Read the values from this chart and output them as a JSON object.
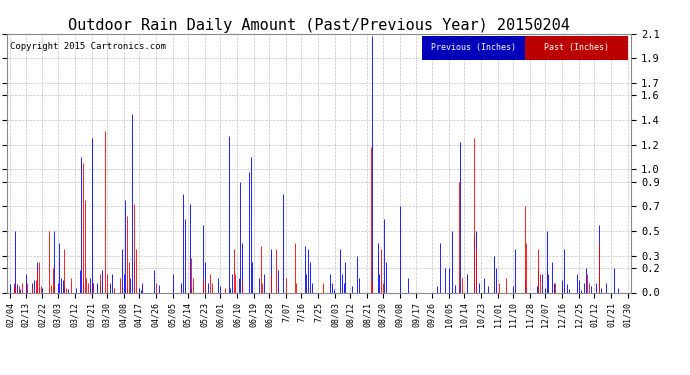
{
  "title": "Outdoor Rain Daily Amount (Past/Previous Year) 20150204",
  "copyright": "Copyright 2015 Cartronics.com",
  "legend_previous": "Previous (Inches)",
  "legend_past": "Past (Inches)",
  "color_previous": "#0000FF",
  "color_past": "#FF0000",
  "color_legend_previous_bg": "#0000BB",
  "color_legend_past_bg": "#BB0000",
  "ylim": [
    0.0,
    2.1
  ],
  "yticks": [
    0.0,
    0.2,
    0.3,
    0.5,
    0.7,
    0.9,
    1.0,
    1.2,
    1.4,
    1.6,
    1.7,
    1.9,
    2.1
  ],
  "background_color": "#ffffff",
  "plot_bg": "#ffffff",
  "grid_color": "#aaaaaa",
  "title_fontsize": 11,
  "xlabel_fontsize": 6,
  "ylabel_fontsize": 7.5,
  "copyright_fontsize": 6.5,
  "num_points": 366,
  "x_labels": [
    "02/04",
    "02/13",
    "02/22",
    "03/03",
    "03/12",
    "03/21",
    "03/30",
    "04/08",
    "04/17",
    "04/26",
    "05/05",
    "05/14",
    "05/23",
    "06/01",
    "06/10",
    "06/19",
    "06/28",
    "7/07",
    "7/16",
    "7/25",
    "08/03",
    "08/12",
    "08/21",
    "08/30",
    "09/08",
    "09/17",
    "09/26",
    "10/05",
    "10/14",
    "10/23",
    "11/01",
    "11/10",
    "11/28",
    "12/07",
    "12/16",
    "12/25",
    "01/12",
    "01/21",
    "01/30"
  ],
  "prev_rain": [
    0.07,
    0.0,
    0.05,
    0.5,
    0.07,
    0.0,
    0.03,
    0.0,
    0.0,
    0.15,
    0.02,
    0.0,
    0.0,
    0.08,
    0.1,
    0.01,
    0.25,
    0.04,
    0.0,
    0.04,
    0.0,
    0.0,
    0.0,
    0.0,
    0.0,
    0.0,
    0.5,
    0.0,
    0.08,
    0.4,
    0.12,
    0.1,
    0.05,
    0.0,
    0.03,
    0.0,
    0.0,
    0.0,
    0.0,
    0.04,
    0.0,
    0.18,
    1.1,
    0.08,
    0.0,
    0.0,
    0.0,
    0.12,
    1.25,
    0.08,
    0.0,
    0.08,
    0.0,
    0.05,
    0.18,
    0.0,
    0.0,
    0.0,
    0.0,
    0.08,
    0.15,
    0.0,
    0.0,
    0.0,
    0.0,
    0.0,
    0.35,
    0.15,
    0.75,
    0.04,
    0.0,
    0.12,
    1.45,
    0.25,
    0.0,
    0.0,
    0.04,
    0.02,
    0.08,
    0.0,
    0.0,
    0.0,
    0.0,
    0.0,
    0.0,
    0.18,
    0.0,
    0.0,
    0.06,
    0.0,
    0.0,
    0.0,
    0.0,
    0.0,
    0.0,
    0.0,
    0.15,
    0.0,
    0.0,
    0.0,
    0.0,
    0.08,
    0.8,
    0.6,
    0.0,
    0.0,
    0.72,
    0.04,
    0.0,
    0.0,
    0.0,
    0.0,
    0.0,
    0.0,
    0.55,
    0.25,
    0.0,
    0.08,
    0.0,
    0.0,
    0.0,
    0.0,
    0.0,
    0.12,
    0.05,
    0.0,
    0.0,
    0.0,
    0.0,
    1.27,
    0.04,
    0.15,
    0.0,
    0.0,
    0.0,
    0.12,
    0.9,
    0.4,
    0.0,
    0.0,
    0.0,
    0.98,
    1.1,
    0.25,
    0.0,
    0.0,
    0.0,
    0.12,
    0.0,
    0.0,
    0.15,
    0.0,
    0.0,
    0.0,
    0.35,
    0.0,
    0.0,
    0.0,
    0.18,
    0.0,
    0.0,
    0.8,
    0.0,
    0.0,
    0.0,
    0.0,
    0.0,
    0.0,
    0.0,
    0.0,
    0.0,
    0.0,
    0.0,
    0.0,
    0.38,
    0.15,
    0.35,
    0.25,
    0.08,
    0.0,
    0.0,
    0.0,
    0.0,
    0.0,
    0.0,
    0.0,
    0.0,
    0.0,
    0.0,
    0.15,
    0.08,
    0.03,
    0.0,
    0.0,
    0.0,
    0.35,
    0.15,
    0.08,
    0.25,
    0.0,
    0.0,
    0.0,
    0.05,
    0.0,
    0.0,
    0.3,
    0.12,
    0.0,
    0.0,
    0.0,
    0.0,
    0.0,
    0.0,
    0.0,
    2.08,
    0.0,
    0.0,
    0.4,
    0.15,
    0.0,
    0.0,
    0.6,
    0.25,
    0.0,
    0.0,
    0.0,
    0.0,
    0.0,
    0.0,
    0.0,
    0.7,
    0.0,
    0.0,
    0.0,
    0.0,
    0.12,
    0.0,
    0.0,
    0.0,
    0.0,
    0.0,
    0.0,
    0.0,
    0.0,
    0.0,
    0.0,
    0.0,
    0.0,
    0.0,
    0.0,
    0.0,
    0.0,
    0.05,
    0.0,
    0.4,
    0.0,
    0.0,
    0.2,
    0.0,
    0.2,
    0.0,
    0.5,
    0.0,
    0.06,
    0.0,
    0.05,
    1.22,
    0.0,
    0.0,
    0.0,
    0.15,
    0.0,
    0.0,
    0.0,
    0.45,
    0.5,
    0.0,
    0.08,
    0.0,
    0.0,
    0.12,
    0.0,
    0.05,
    0.0,
    0.0,
    0.0,
    0.3,
    0.2,
    0.0,
    0.0,
    0.0,
    0.0,
    0.0,
    0.0,
    0.0,
    0.0,
    0.0,
    0.05,
    0.35,
    0.0,
    0.0,
    0.0,
    0.0,
    0.0,
    0.1,
    0.0,
    0.0,
    0.0,
    0.0,
    0.0,
    0.0,
    0.05,
    0.2,
    0.0,
    0.15,
    0.0,
    0.04,
    0.5,
    0.15,
    0.0,
    0.25,
    0.08,
    0.0,
    0.0,
    0.0,
    0.0,
    0.1,
    0.35,
    0.0,
    0.07,
    0.03,
    0.0,
    0.0,
    0.0,
    0.0,
    0.15,
    0.1,
    0.02,
    0.0,
    0.08,
    0.2,
    0.0,
    0.0,
    0.05,
    0.0,
    0.0,
    0.08,
    0.0,
    0.55,
    0.04,
    0.0,
    0.0,
    0.08,
    0.0,
    0.0,
    0.0,
    0.0,
    0.2,
    0.0,
    0.04,
    0.0,
    0.0,
    0.0,
    0.0,
    0.0,
    0.0
  ],
  "past_rain": [
    0.0,
    0.0,
    0.08,
    0.04,
    0.0,
    0.05,
    0.0,
    0.08,
    0.0,
    0.0,
    0.08,
    0.0,
    0.0,
    0.05,
    0.0,
    0.1,
    0.18,
    0.25,
    0.05,
    0.0,
    0.0,
    0.0,
    0.0,
    0.5,
    0.06,
    0.2,
    0.08,
    0.0,
    0.0,
    0.0,
    0.0,
    0.0,
    0.35,
    0.04,
    0.0,
    0.0,
    0.12,
    0.0,
    0.0,
    0.0,
    0.0,
    0.0,
    0.0,
    1.05,
    0.75,
    0.12,
    0.08,
    0.0,
    0.0,
    0.08,
    0.0,
    0.0,
    0.0,
    0.15,
    0.0,
    0.0,
    1.31,
    0.15,
    0.0,
    0.0,
    0.0,
    0.04,
    0.0,
    0.0,
    0.0,
    0.12,
    0.0,
    0.0,
    0.0,
    0.62,
    0.25,
    0.0,
    0.0,
    0.72,
    0.35,
    0.0,
    0.0,
    0.0,
    0.0,
    0.0,
    0.0,
    0.0,
    0.0,
    0.0,
    0.0,
    0.0,
    0.08,
    0.0,
    0.0,
    0.0,
    0.0,
    0.0,
    0.0,
    0.0,
    0.0,
    0.0,
    0.0,
    0.0,
    0.0,
    0.0,
    0.0,
    0.0,
    0.0,
    0.0,
    0.0,
    0.0,
    0.0,
    0.28,
    0.12,
    0.0,
    0.0,
    0.0,
    0.0,
    0.0,
    0.12,
    0.08,
    0.0,
    0.0,
    0.15,
    0.08,
    0.0,
    0.0,
    0.0,
    0.0,
    0.0,
    0.0,
    0.0,
    0.04,
    0.0,
    0.0,
    0.0,
    0.0,
    0.35,
    0.15,
    0.0,
    0.0,
    0.0,
    0.1,
    0.0,
    0.0,
    0.0,
    0.0,
    0.0,
    0.0,
    0.0,
    0.0,
    0.0,
    0.0,
    0.38,
    0.08,
    0.0,
    0.0,
    0.0,
    0.0,
    0.15,
    0.0,
    0.0,
    0.35,
    0.0,
    0.0,
    0.0,
    0.0,
    0.0,
    0.12,
    0.0,
    0.0,
    0.0,
    0.0,
    0.4,
    0.08,
    0.0,
    0.0,
    0.0,
    0.0,
    0.0,
    0.0,
    0.0,
    0.0,
    0.0,
    0.0,
    0.0,
    0.0,
    0.0,
    0.0,
    0.0,
    0.08,
    0.0,
    0.0,
    0.0,
    0.0,
    0.0,
    0.0,
    0.0,
    0.0,
    0.0,
    0.0,
    0.0,
    0.0,
    0.0,
    0.0,
    0.0,
    0.0,
    0.0,
    0.0,
    0.0,
    0.0,
    0.0,
    0.0,
    0.0,
    0.0,
    0.0,
    0.0,
    0.0,
    1.18,
    0.08,
    0.0,
    0.0,
    0.0,
    0.0,
    0.35,
    0.08,
    0.0,
    0.0,
    0.0,
    0.0,
    0.0,
    0.0,
    0.0,
    0.0,
    0.0,
    0.0,
    0.0,
    0.0,
    0.0,
    0.0,
    0.0,
    0.0,
    0.0,
    0.0,
    0.0,
    0.0,
    0.0,
    0.0,
    0.0,
    0.0,
    0.0,
    0.0,
    0.0,
    0.0,
    0.0,
    0.0,
    0.0,
    0.0,
    0.0,
    0.0,
    0.0,
    0.0,
    0.0,
    0.0,
    0.0,
    0.0,
    0.0,
    0.0,
    0.0,
    0.0,
    0.9,
    0.0,
    0.12,
    0.0,
    0.0,
    0.0,
    0.0,
    0.0,
    0.0,
    1.25,
    0.35,
    0.0,
    0.0,
    0.0,
    0.0,
    0.0,
    0.0,
    0.0,
    0.0,
    0.0,
    0.0,
    0.0,
    0.0,
    0.0,
    0.08,
    0.0,
    0.0,
    0.0,
    0.12,
    0.0,
    0.0,
    0.0,
    0.0,
    0.0,
    0.0,
    0.0,
    0.0,
    0.0,
    0.0,
    0.7,
    0.4,
    0.0,
    0.0,
    0.0,
    0.0,
    0.0,
    0.0,
    0.35,
    0.15,
    0.0,
    0.0,
    0.0,
    0.0,
    0.0,
    0.0,
    0.0,
    0.0,
    0.08,
    0.0,
    0.0,
    0.0,
    0.0,
    0.0,
    0.0,
    0.0,
    0.0,
    0.0,
    0.0,
    0.0,
    0.0,
    0.0,
    0.0,
    0.0,
    0.0,
    0.0,
    0.0,
    0.15,
    0.08,
    0.0,
    0.0,
    0.0,
    0.0,
    0.0,
    0.4,
    0.0,
    0.0,
    0.0,
    0.0,
    0.0,
    0.0,
    0.0,
    0.0,
    0.0,
    0.0,
    0.0,
    0.0,
    0.0,
    0.0,
    0.0,
    0.0,
    0.0
  ]
}
